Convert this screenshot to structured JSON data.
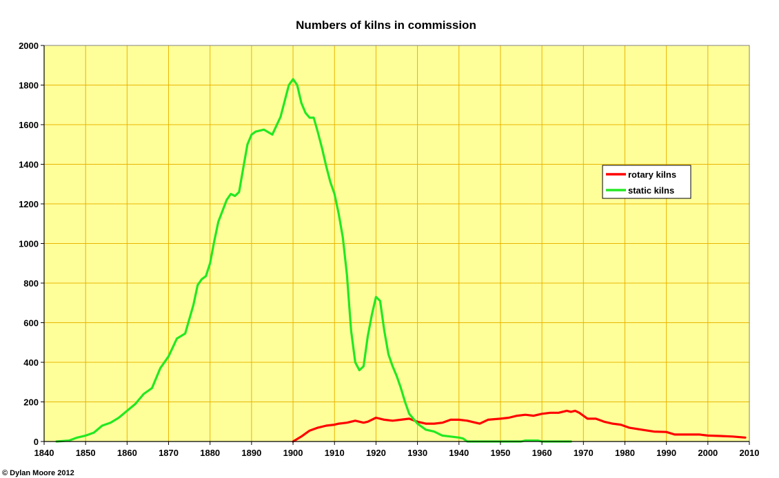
{
  "chart_data": {
    "type": "line",
    "title": "Numbers of kilns in commission",
    "xlabel": "",
    "ylabel": "",
    "xlim": [
      1840,
      2010
    ],
    "ylim": [
      0,
      2000
    ],
    "x_ticks": [
      1840,
      1850,
      1860,
      1870,
      1880,
      1890,
      1900,
      1910,
      1920,
      1930,
      1940,
      1950,
      1960,
      1970,
      1980,
      1990,
      2000,
      2010
    ],
    "y_ticks": [
      0,
      200,
      400,
      600,
      800,
      1000,
      1200,
      1400,
      1600,
      1800,
      2000
    ],
    "grid": true,
    "legend_position": "right",
    "series": [
      {
        "name": "rotary kilns",
        "color": "#ff0000",
        "points": [
          [
            1900,
            0
          ],
          [
            1902,
            25
          ],
          [
            1904,
            55
          ],
          [
            1906,
            70
          ],
          [
            1908,
            80
          ],
          [
            1910,
            85
          ],
          [
            1911,
            90
          ],
          [
            1913,
            95
          ],
          [
            1915,
            105
          ],
          [
            1917,
            95
          ],
          [
            1918,
            100
          ],
          [
            1920,
            120
          ],
          [
            1922,
            110
          ],
          [
            1924,
            105
          ],
          [
            1926,
            110
          ],
          [
            1928,
            115
          ],
          [
            1930,
            100
          ],
          [
            1932,
            90
          ],
          [
            1934,
            90
          ],
          [
            1936,
            95
          ],
          [
            1938,
            110
          ],
          [
            1940,
            110
          ],
          [
            1942,
            105
          ],
          [
            1944,
            95
          ],
          [
            1945,
            90
          ],
          [
            1947,
            110
          ],
          [
            1950,
            115
          ],
          [
            1952,
            120
          ],
          [
            1954,
            130
          ],
          [
            1956,
            135
          ],
          [
            1958,
            130
          ],
          [
            1960,
            140
          ],
          [
            1962,
            145
          ],
          [
            1964,
            145
          ],
          [
            1966,
            155
          ],
          [
            1967,
            150
          ],
          [
            1968,
            155
          ],
          [
            1969,
            145
          ],
          [
            1971,
            115
          ],
          [
            1973,
            115
          ],
          [
            1975,
            100
          ],
          [
            1977,
            90
          ],
          [
            1979,
            85
          ],
          [
            1981,
            70
          ],
          [
            1984,
            60
          ],
          [
            1987,
            50
          ],
          [
            1990,
            48
          ],
          [
            1992,
            35
          ],
          [
            1994,
            35
          ],
          [
            1996,
            35
          ],
          [
            1998,
            35
          ],
          [
            2000,
            30
          ],
          [
            2003,
            28
          ],
          [
            2006,
            25
          ],
          [
            2009,
            20
          ]
        ]
      },
      {
        "name": "static kilns",
        "color": "#22e822",
        "points": [
          [
            1843,
            0
          ],
          [
            1846,
            5
          ],
          [
            1848,
            20
          ],
          [
            1850,
            30
          ],
          [
            1852,
            45
          ],
          [
            1854,
            80
          ],
          [
            1856,
            95
          ],
          [
            1858,
            120
          ],
          [
            1860,
            155
          ],
          [
            1862,
            190
          ],
          [
            1864,
            240
          ],
          [
            1866,
            270
          ],
          [
            1868,
            370
          ],
          [
            1870,
            430
          ],
          [
            1872,
            520
          ],
          [
            1874,
            545
          ],
          [
            1876,
            690
          ],
          [
            1877,
            790
          ],
          [
            1878,
            820
          ],
          [
            1879,
            835
          ],
          [
            1880,
            900
          ],
          [
            1881,
            1010
          ],
          [
            1882,
            1110
          ],
          [
            1884,
            1220
          ],
          [
            1885,
            1250
          ],
          [
            1886,
            1240
          ],
          [
            1887,
            1260
          ],
          [
            1888,
            1380
          ],
          [
            1889,
            1500
          ],
          [
            1890,
            1550
          ],
          [
            1891,
            1565
          ],
          [
            1893,
            1575
          ],
          [
            1895,
            1550
          ],
          [
            1897,
            1640
          ],
          [
            1898,
            1720
          ],
          [
            1899,
            1800
          ],
          [
            1900,
            1830
          ],
          [
            1901,
            1800
          ],
          [
            1902,
            1710
          ],
          [
            1903,
            1660
          ],
          [
            1904,
            1635
          ],
          [
            1905,
            1635
          ],
          [
            1906,
            1560
          ],
          [
            1907,
            1480
          ],
          [
            1908,
            1390
          ],
          [
            1909,
            1310
          ],
          [
            1910,
            1250
          ],
          [
            1911,
            1150
          ],
          [
            1912,
            1030
          ],
          [
            1913,
            840
          ],
          [
            1914,
            560
          ],
          [
            1915,
            400
          ],
          [
            1916,
            360
          ],
          [
            1917,
            380
          ],
          [
            1918,
            530
          ],
          [
            1919,
            640
          ],
          [
            1920,
            730
          ],
          [
            1921,
            710
          ],
          [
            1922,
            560
          ],
          [
            1923,
            440
          ],
          [
            1924,
            380
          ],
          [
            1925,
            330
          ],
          [
            1926,
            270
          ],
          [
            1927,
            200
          ],
          [
            1928,
            140
          ],
          [
            1930,
            90
          ],
          [
            1932,
            60
          ],
          [
            1934,
            50
          ],
          [
            1936,
            30
          ],
          [
            1938,
            25
          ],
          [
            1940,
            20
          ],
          [
            1941,
            15
          ],
          [
            1942,
            0
          ],
          [
            1955,
            0
          ],
          [
            1956,
            5
          ],
          [
            1959,
            5
          ],
          [
            1960,
            0
          ],
          [
            1967,
            0
          ]
        ]
      }
    ]
  },
  "credit": "© Dylan Moore 2012"
}
